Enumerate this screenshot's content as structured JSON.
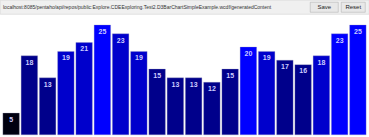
{
  "chart_data": {
    "type": "bar",
    "annotations": [
      "localhost:8085/pentaho/api/repos/public:Explore.CDEExploring.Test2.D3BarChartSimpleExample.wcdf/generatedContent",
      "Save",
      "Reset"
    ],
    "categories": [
      null,
      null,
      null,
      null,
      null,
      null,
      null,
      null,
      null,
      null,
      null,
      null,
      null,
      null,
      null,
      null,
      null,
      null,
      null,
      null
    ],
    "values": [
      5,
      18,
      13,
      19,
      21,
      25,
      23,
      19,
      15,
      13,
      13,
      12,
      15,
      20,
      19,
      17,
      16,
      18,
      23,
      25
    ],
    "colors": [
      "#000010",
      "#00008B",
      "#00008B",
      "#0000CC",
      "#0000CC",
      "#0000FF",
      "#0000CC",
      "#0000CC",
      "#00008B",
      "#00008B",
      "#00008B",
      "#00008B",
      "#00008B",
      "#0000FF",
      "#0000CC",
      "#00008B",
      "#00008B",
      "#0000CC",
      "#0000FF",
      "#0000FF"
    ],
    "ylim": [
      0,
      27
    ],
    "grid": false,
    "data_labels": true,
    "tick_labels": false
  }
}
